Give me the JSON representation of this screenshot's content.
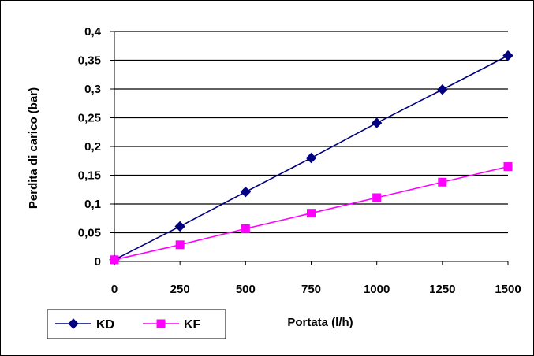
{
  "chart_data": {
    "type": "line",
    "xlabel": "Portata (l/h)",
    "ylabel": "Perdita di carico (bar)",
    "x": [
      0,
      250,
      500,
      750,
      1000,
      1250,
      1500
    ],
    "xlim": [
      0,
      1500
    ],
    "ylim": [
      0,
      0.4
    ],
    "x_ticks": [
      "0",
      "250",
      "500",
      "750",
      "1000",
      "1250",
      "1500"
    ],
    "y_ticks": [
      "0",
      "0,05",
      "0,1",
      "0,15",
      "0,2",
      "0,25",
      "0,3",
      "0,35",
      "0,4"
    ],
    "y_tick_values": [
      0,
      0.05,
      0.1,
      0.15,
      0.2,
      0.25,
      0.3,
      0.35,
      0.4
    ],
    "grid": "horizontal",
    "legend_position": "bottom-left",
    "series": [
      {
        "name": "KD",
        "color": "#000080",
        "marker": "diamond",
        "values": [
          0.003,
          0.061,
          0.121,
          0.18,
          0.241,
          0.299,
          0.358
        ]
      },
      {
        "name": "KF",
        "color": "#FF00FF",
        "marker": "square",
        "values": [
          0.003,
          0.029,
          0.057,
          0.084,
          0.111,
          0.138,
          0.165
        ]
      }
    ]
  }
}
